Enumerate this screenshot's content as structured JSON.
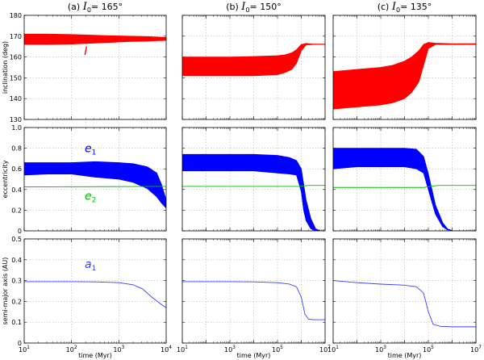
{
  "chart_data": {
    "type": "line",
    "layout": "3x3 panel grid, rows share y-axis label on left column",
    "column_titles": [
      {
        "prefix": "(a) ",
        "var": "I",
        "sub": "0",
        "suffix": "= 165°"
      },
      {
        "prefix": "(b) ",
        "var": "I",
        "sub": "0",
        "suffix": "= 150°"
      },
      {
        "prefix": "(c) ",
        "var": "I",
        "sub": "0",
        "suffix": "= 135°"
      }
    ],
    "xlabel": "time (Myr)",
    "xscale": "log",
    "x_ticks": [
      [
        {
          "base": "10",
          "exp": "1"
        },
        {
          "base": "10",
          "exp": "2"
        },
        {
          "base": "10",
          "exp": "3"
        },
        {
          "base": "10",
          "exp": "4"
        }
      ],
      [
        {
          "base": "10",
          "exp": "1"
        },
        {
          "base": "10",
          "exp": "3"
        },
        {
          "base": "10",
          "exp": "5"
        },
        {
          "base": "10",
          "exp": "7"
        }
      ],
      [
        {
          "base": "10",
          "exp": "1"
        },
        {
          "base": "10",
          "exp": "3"
        },
        {
          "base": "10",
          "exp": "5"
        },
        {
          "base": "10",
          "exp": "7"
        }
      ]
    ],
    "xlim_log10": [
      [
        1,
        4
      ],
      [
        1,
        7
      ],
      [
        1,
        7
      ]
    ],
    "colors": {
      "inclination": "#ff0000",
      "e1": "#0000ff",
      "e2": "#00c000",
      "a1": "#3c3cff"
    },
    "rows": [
      {
        "ylabel": "inclination (deg)",
        "ylim": [
          130,
          180
        ],
        "yticks": [
          "130",
          "140",
          "150",
          "160",
          "170",
          "180"
        ],
        "annotations": [
          {
            "panel": 0,
            "text": "I",
            "color": "#ff0000",
            "at": [
              2.3,
              161
            ]
          }
        ],
        "panels": [
          {
            "series": [
              {
                "name": "I",
                "color": "#ff0000",
                "kind": "band",
                "logt": [
                  1,
                  1.5,
                  2,
                  2.4,
                  2.8,
                  3.2,
                  3.6,
                  4
                ],
                "lo": [
                  166,
                  166,
                  166.2,
                  166.6,
                  167,
                  167.4,
                  167.6,
                  168
                ],
                "hi": [
                  171,
                  171,
                  170.8,
                  170.5,
                  170.2,
                  170,
                  169.8,
                  169.4
                ]
              }
            ]
          },
          {
            "series": [
              {
                "name": "I",
                "color": "#ff0000",
                "kind": "band",
                "logt": [
                  1,
                  2,
                  3,
                  4,
                  5,
                  5.3,
                  5.6,
                  5.8,
                  6,
                  6.2,
                  6.5,
                  7
                ],
                "lo": [
                  151,
                  151,
                  151,
                  151,
                  151.5,
                  152.5,
                  154,
                  157,
                  163,
                  165.8,
                  166,
                  166
                ],
                "hi": [
                  160,
                  160,
                  160,
                  160.2,
                  160.6,
                  161,
                  162,
                  163.5,
                  166,
                  166.5,
                  166.2,
                  166.2
                ]
              }
            ]
          },
          {
            "series": [
              {
                "name": "I",
                "color": "#ff0000",
                "kind": "band",
                "logt": [
                  1,
                  2,
                  3,
                  3.5,
                  4,
                  4.3,
                  4.6,
                  4.8,
                  5,
                  5.3,
                  6,
                  7
                ],
                "lo": [
                  135,
                  136,
                  137,
                  138,
                  140,
                  143,
                  148,
                  156,
                  164,
                  166,
                  166,
                  166
                ],
                "hi": [
                  153,
                  154,
                  155,
                  156,
                  158,
                  160,
                  163,
                  166,
                  167,
                  166.6,
                  166.4,
                  166.4
                ]
              }
            ]
          }
        ]
      },
      {
        "ylabel": "eccentricity",
        "ylim": [
          0,
          1
        ],
        "yticks": [
          "0",
          "0.2",
          "0.4",
          "0.6",
          "0.8",
          "1.0"
        ],
        "annotations": [
          {
            "panel": 0,
            "text": "e",
            "sub": "1",
            "color": "#0000ff",
            "at": [
              2.4,
              0.76
            ]
          },
          {
            "panel": 0,
            "text": "e",
            "sub": "2",
            "color": "#00c000",
            "at": [
              2.4,
              0.3
            ]
          }
        ],
        "panels": [
          {
            "series": [
              {
                "name": "e1",
                "color": "#0000ff",
                "kind": "band",
                "logt": [
                  1,
                  1.5,
                  2,
                  2.5,
                  3,
                  3.3,
                  3.6,
                  3.8,
                  3.9,
                  4
                ],
                "lo": [
                  0.54,
                  0.55,
                  0.55,
                  0.52,
                  0.5,
                  0.47,
                  0.41,
                  0.33,
                  0.27,
                  0.22
                ],
                "hi": [
                  0.66,
                  0.66,
                  0.66,
                  0.67,
                  0.66,
                  0.65,
                  0.62,
                  0.56,
                  0.45,
                  0.3
                ]
              },
              {
                "name": "e2",
                "color": "#00c000",
                "kind": "line",
                "logt": [
                  1,
                  4
                ],
                "y": [
                  0.425,
                  0.43
                ]
              }
            ]
          },
          {
            "series": [
              {
                "name": "e1",
                "color": "#0000ff",
                "kind": "band",
                "logt": [
                  1,
                  2,
                  3,
                  4,
                  5,
                  5.5,
                  5.8,
                  6,
                  6.1,
                  6.2,
                  6.4,
                  6.6,
                  6.8,
                  7
                ],
                "lo": [
                  0.58,
                  0.58,
                  0.58,
                  0.58,
                  0.56,
                  0.55,
                  0.54,
                  0.38,
                  0.2,
                  0.1,
                  0.02,
                  0.0,
                  0.0,
                  0.0
                ],
                "hi": [
                  0.74,
                  0.74,
                  0.74,
                  0.74,
                  0.73,
                  0.71,
                  0.68,
                  0.6,
                  0.45,
                  0.3,
                  0.12,
                  0.02,
                  0.0,
                  0.0
                ]
              },
              {
                "name": "e2",
                "color": "#00c000",
                "kind": "line",
                "logt": [
                  1,
                  5.9,
                  6.3,
                  7
                ],
                "y": [
                  0.43,
                  0.43,
                  0.44,
                  0.44
                ]
              }
            ]
          },
          {
            "series": [
              {
                "name": "e1",
                "color": "#0000ff",
                "kind": "band",
                "logt": [
                  1,
                  2,
                  3,
                  4,
                  4.5,
                  4.8,
                  5,
                  5.3,
                  5.6,
                  5.8,
                  6,
                  7
                ],
                "lo": [
                  0.6,
                  0.62,
                  0.62,
                  0.62,
                  0.6,
                  0.56,
                  0.4,
                  0.16,
                  0.04,
                  0.01,
                  0.0,
                  0.0
                ],
                "hi": [
                  0.8,
                  0.8,
                  0.8,
                  0.8,
                  0.79,
                  0.72,
                  0.55,
                  0.25,
                  0.08,
                  0.02,
                  0.0,
                  0.0
                ]
              },
              {
                "name": "e2",
                "color": "#00c000",
                "kind": "line",
                "logt": [
                  1,
                  4.8,
                  5.4,
                  7
                ],
                "y": [
                  0.42,
                  0.42,
                  0.44,
                  0.44
                ]
              }
            ]
          }
        ]
      },
      {
        "ylabel": "semi-major axis (AU)",
        "ylim": [
          0,
          0.5
        ],
        "yticks": [
          "0",
          "0.1",
          "0.2",
          "0.3",
          "0.4",
          "0.5"
        ],
        "annotations": [
          {
            "panel": 0,
            "text": "a",
            "sub": "1",
            "color": "#3c3cff",
            "at": [
              2.4,
              0.36
            ]
          }
        ],
        "panels": [
          {
            "series": [
              {
                "name": "a1",
                "color": "#3c3cff",
                "kind": "line",
                "logt": [
                  1,
                  2,
                  2.5,
                  3,
                  3.3,
                  3.5,
                  3.7,
                  3.9,
                  4
                ],
                "y": [
                  0.295,
                  0.295,
                  0.294,
                  0.29,
                  0.28,
                  0.26,
                  0.22,
                  0.185,
                  0.17
                ]
              }
            ]
          },
          {
            "series": [
              {
                "name": "a1",
                "color": "#3c3cff",
                "kind": "line",
                "logt": [
                  1,
                  3,
                  4,
                  5,
                  5.5,
                  5.8,
                  6,
                  6.15,
                  6.3,
                  6.5,
                  7
                ],
                "y": [
                  0.295,
                  0.295,
                  0.294,
                  0.29,
                  0.283,
                  0.27,
                  0.22,
                  0.14,
                  0.115,
                  0.112,
                  0.112
                ]
              }
            ]
          },
          {
            "series": [
              {
                "name": "a1",
                "color": "#3c3cff",
                "kind": "line",
                "logt": [
                  1,
                  2,
                  3,
                  4,
                  4.5,
                  4.8,
                  5,
                  5.2,
                  5.5,
                  6,
                  7
                ],
                "y": [
                  0.3,
                  0.29,
                  0.283,
                  0.278,
                  0.27,
                  0.24,
                  0.15,
                  0.09,
                  0.08,
                  0.078,
                  0.078
                ]
              }
            ]
          }
        ]
      }
    ]
  }
}
